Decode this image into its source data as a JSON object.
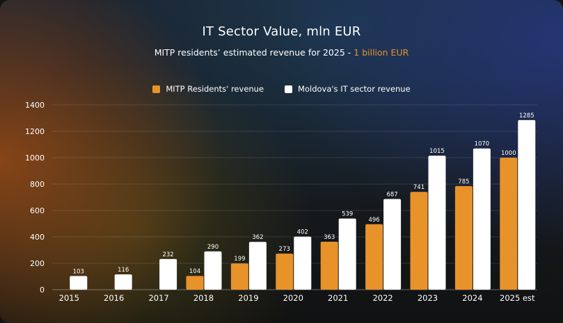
{
  "chart_data": {
    "type": "bar",
    "title": "IT Sector Value, mln EUR",
    "subtitle": {
      "text": "MITP residents’ estimated revenue for 2025 -",
      "highlight": "1 billion EUR"
    },
    "categories": [
      "2015",
      "2016",
      "2017",
      "2018",
      "2019",
      "2020",
      "2021",
      "2022",
      "2023",
      "2024",
      "2025 est"
    ],
    "series": [
      {
        "name": "MITP Residents' revenue",
        "color": "#e8922a",
        "values": [
          null,
          null,
          null,
          104,
          199,
          273,
          363,
          496,
          741,
          785,
          1000
        ]
      },
      {
        "name": "Moldova's IT sector revenue",
        "color": "#ffffff",
        "values": [
          103,
          116,
          232,
          290,
          362,
          402,
          539,
          687,
          1015,
          1070,
          1285
        ]
      }
    ],
    "ylim": [
      0,
      1400
    ],
    "yticks": [
      0,
      200,
      400,
      600,
      800,
      1000,
      1200,
      1400
    ],
    "grid": true,
    "legend_position": "top-center",
    "xlabel": "",
    "ylabel": ""
  }
}
